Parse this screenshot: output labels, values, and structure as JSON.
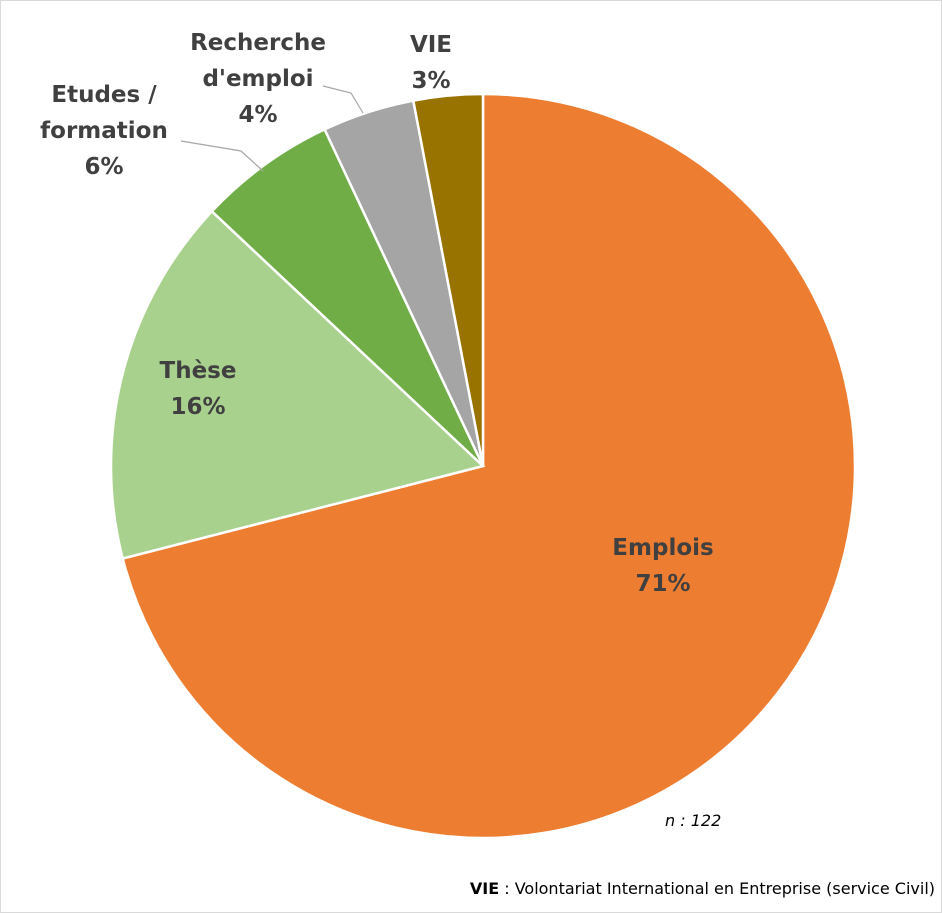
{
  "chart_data": {
    "type": "pie",
    "categories": [
      "Emplois",
      "Thèse",
      "Etudes / formation",
      "Recherche d'emploi",
      "VIE"
    ],
    "values": [
      71,
      16,
      6,
      4,
      3
    ],
    "value_labels": [
      "71%",
      "16%",
      "6%",
      "4%",
      "3%"
    ],
    "colors": [
      "#ed7d31",
      "#a9d18e",
      "#70ad47",
      "#a5a5a5",
      "#997300"
    ],
    "annotation": "n : 122",
    "footnote": {
      "term": "VIE",
      "text": ": Volontariat International en Entreprise (service Civil)"
    }
  }
}
